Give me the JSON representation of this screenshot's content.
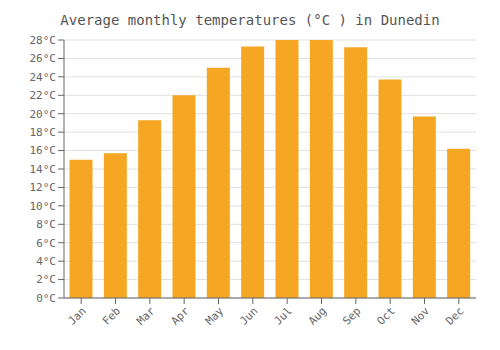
{
  "chart_data": {
    "type": "bar",
    "title": "Average monthly temperatures (°C ) in Dunedin",
    "categories": [
      "Jan",
      "Feb",
      "Mar",
      "Apr",
      "May",
      "Jun",
      "Jul",
      "Aug",
      "Sep",
      "Oct",
      "Nov",
      "Dec"
    ],
    "values": [
      15.0,
      15.7,
      19.3,
      22.0,
      25.0,
      27.3,
      28.0,
      28.0,
      27.2,
      23.7,
      19.7,
      16.2
    ],
    "color": "#F5A623",
    "ylim": [
      0,
      28
    ],
    "yticks": [
      {
        "value": 0,
        "label": "0°C"
      },
      {
        "value": 2,
        "label": "2°C"
      },
      {
        "value": 4,
        "label": "4°C"
      },
      {
        "value": 6,
        "label": "6°C"
      },
      {
        "value": 8,
        "label": "8°C"
      },
      {
        "value": 10,
        "label": "10°C"
      },
      {
        "value": 12,
        "label": "12°C"
      },
      {
        "value": 14,
        "label": "14°C"
      },
      {
        "value": 16,
        "label": "16°C"
      },
      {
        "value": 18,
        "label": "18°C"
      },
      {
        "value": 20,
        "label": "20°C"
      },
      {
        "value": 22,
        "label": "22°C"
      },
      {
        "value": 24,
        "label": "24°C"
      },
      {
        "value": 26,
        "label": "26°C"
      },
      {
        "value": 28,
        "label": "28°C"
      }
    ],
    "grid": true
  }
}
